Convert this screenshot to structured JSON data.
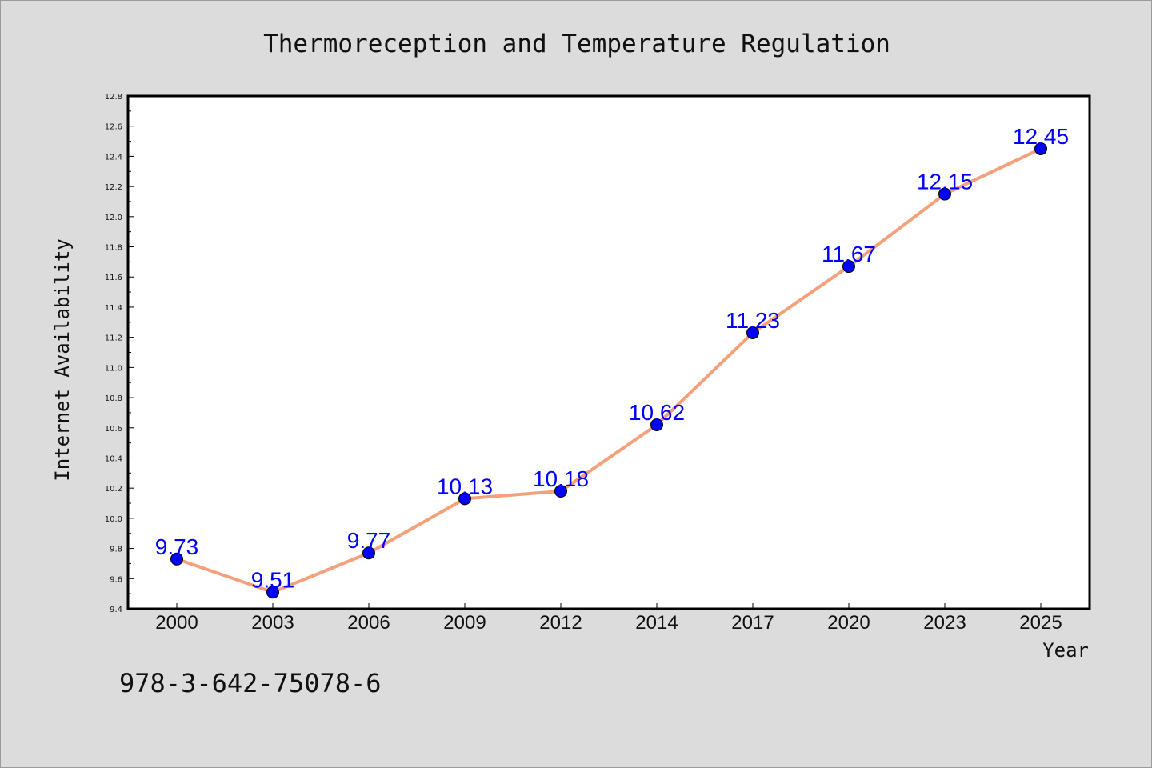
{
  "chart_data": {
    "type": "line",
    "title": "Thermoreception and Temperature Regulation",
    "xlabel": "Year",
    "ylabel": "Internet Availability",
    "categories": [
      "2000",
      "2003",
      "2006",
      "2009",
      "2012",
      "2014",
      "2017",
      "2020",
      "2023",
      "2025"
    ],
    "series": [
      {
        "values": [
          9.73,
          9.51,
          9.77,
          10.13,
          10.18,
          10.62,
          11.23,
          11.67,
          12.15,
          12.45
        ],
        "labels": [
          "9.73",
          "9.51",
          "9.77",
          "10.13",
          "10.18",
          "10.62",
          "11.23",
          "11.67",
          "12.15",
          "12.45"
        ],
        "line_color": "#f4a07a",
        "marker_color": "#0000ff"
      }
    ],
    "ylim": [
      9.4,
      12.8
    ],
    "yticks": [
      "9.4",
      "9.6",
      "9.8",
      "10.0",
      "10.2",
      "10.4",
      "10.6",
      "10.8",
      "11.0",
      "11.2",
      "11.4",
      "11.6",
      "11.8",
      "12.0",
      "12.2",
      "12.4",
      "12.6",
      "12.8"
    ],
    "grid": false,
    "legend": "none"
  },
  "footnote": "978-3-642-75078-6",
  "colors": {
    "background": "#dcdcdc",
    "plot_area": "#ffffff",
    "line": "#f4a07a",
    "marker": "#0000ff",
    "data_label": "#0000ff"
  }
}
